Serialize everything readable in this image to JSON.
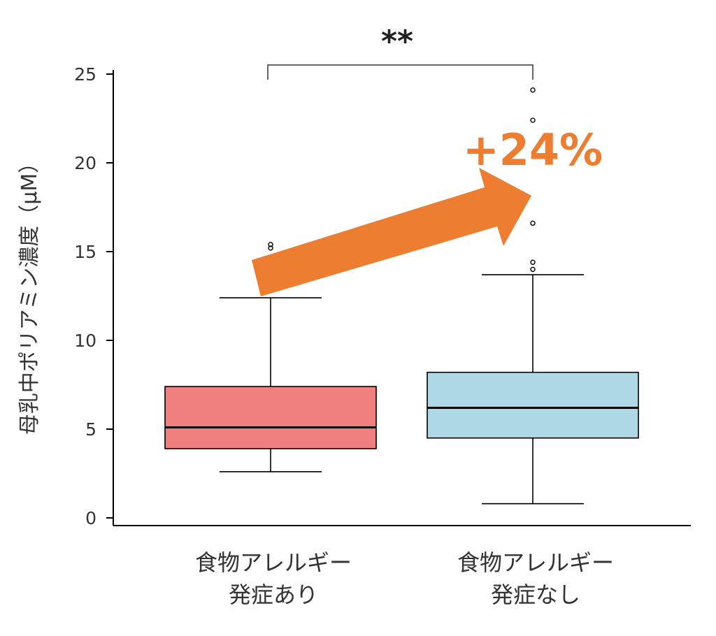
{
  "chart_data": {
    "type": "box",
    "ylabel": "母乳中ポリアミン濃度（μM）",
    "ylim": [
      0,
      25
    ],
    "yticks": [
      "0",
      "5",
      "10",
      "15",
      "20",
      "25"
    ],
    "categories": [
      {
        "line1": "食物アレルギー",
        "line2": "発症あり"
      },
      {
        "line1": "食物アレルギー",
        "line2": "発症なし"
      }
    ],
    "boxes": [
      {
        "whisker_low": 2.6,
        "q1": 3.9,
        "median": 5.1,
        "q3": 7.4,
        "whisker_high": 12.4,
        "outliers": [
          15.2,
          15.4
        ],
        "color": "#f08080"
      },
      {
        "whisker_low": 0.8,
        "q1": 4.5,
        "median": 6.2,
        "q3": 8.2,
        "whisker_high": 13.7,
        "outliers": [
          14.0,
          14.4,
          16.6,
          22.4,
          24.1
        ],
        "color": "#add8e6"
      }
    ],
    "annotations": {
      "significance": "**",
      "change": "+24%",
      "change_color": "#ed7d31"
    }
  }
}
